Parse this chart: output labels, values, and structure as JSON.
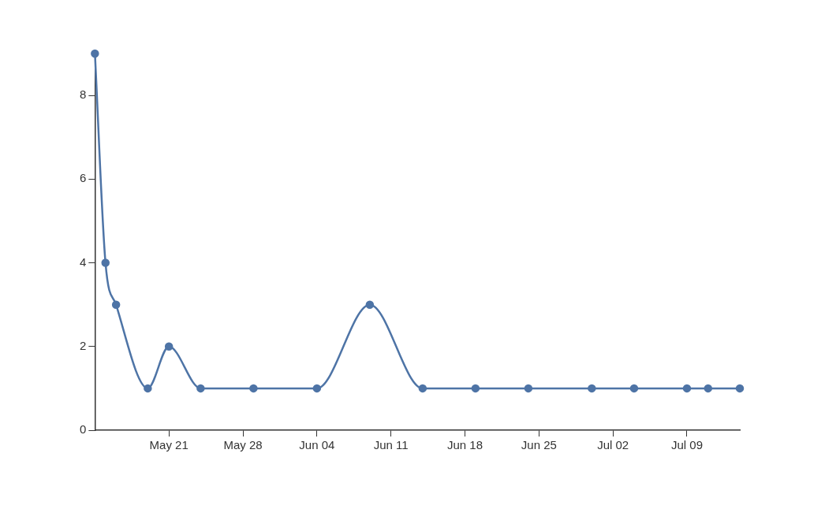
{
  "chart_data": {
    "type": "line",
    "x": [
      "--05-14",
      "--05-15",
      "--05-16",
      "--05-19",
      "--05-21",
      "--05-24",
      "--05-29",
      "--06-04",
      "--06-09",
      "--06-14",
      "--06-19",
      "--06-24",
      "--06-30",
      "--07-04",
      "--07-09",
      "--07-11",
      "--07-14"
    ],
    "series": [
      {
        "color": "#4e74a6",
        "values": [
          9,
          4,
          3,
          1,
          2,
          1,
          1,
          1,
          3,
          1,
          1,
          1,
          1,
          1,
          1,
          1,
          1
        ]
      }
    ],
    "xlim": [
      "--05-14",
      "--07-14"
    ],
    "xticks": [
      {
        "value": "--05-21",
        "label": "May 21"
      },
      {
        "value": "--05-28",
        "label": "May 28"
      },
      {
        "value": "--06-04",
        "label": "Jun 04"
      },
      {
        "value": "--06-11",
        "label": "Jun 11"
      },
      {
        "value": "--06-18",
        "label": "Jun 18"
      },
      {
        "value": "--06-25",
        "label": "Jun 25"
      },
      {
        "value": "--07-02",
        "label": "Jul 02"
      },
      {
        "value": "--07-09",
        "label": "Jul 09"
      }
    ],
    "ylim": [
      0,
      9
    ],
    "yticks": [
      0,
      2,
      4,
      6,
      8
    ],
    "grid": false,
    "legend": false,
    "marker": "circle"
  }
}
